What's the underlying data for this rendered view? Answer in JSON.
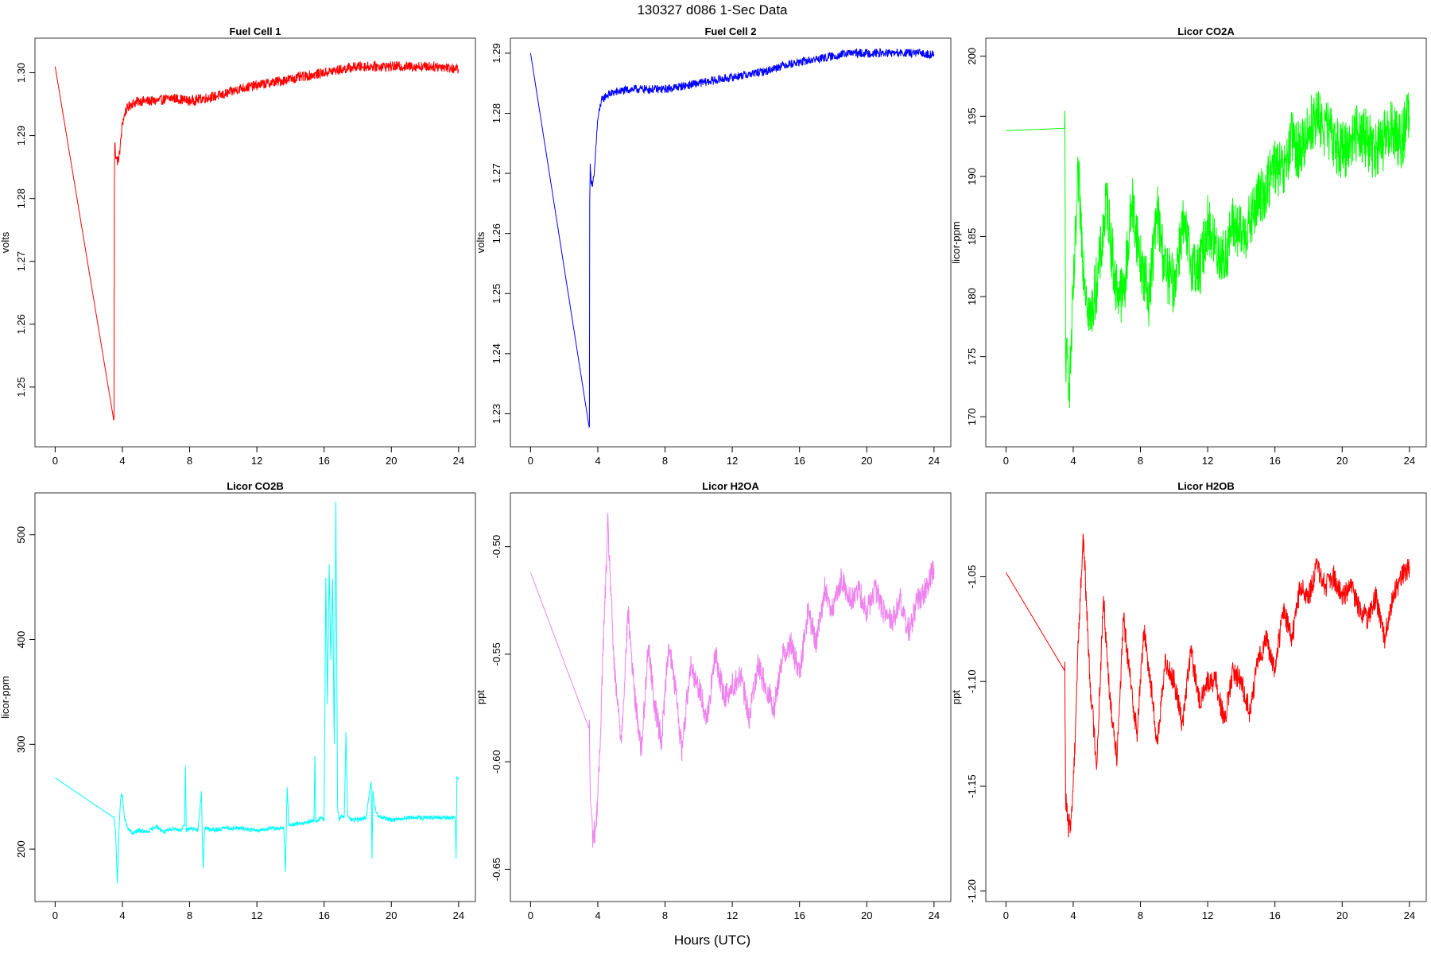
{
  "figure": {
    "title": "130327   d086   1-Sec Data",
    "xlabel": "Hours (UTC)"
  },
  "chart_data": [
    {
      "type": "line",
      "title": "Fuel Cell 1",
      "xlabel": "",
      "ylabel": "volts",
      "color": "#ff0000",
      "xlim": [
        -1.2,
        25
      ],
      "ylim": [
        1.2405,
        1.3055
      ],
      "xticks": [
        0,
        4,
        8,
        12,
        16,
        20,
        24
      ],
      "yticks": [
        1.25,
        1.26,
        1.27,
        1.28,
        1.29,
        1.3
      ],
      "ytick_labels": [
        "1.25",
        "1.26",
        "1.27",
        "1.28",
        "1.29",
        "1.30"
      ],
      "noise": 0.0008,
      "x": [
        0.0,
        3.5,
        3.52,
        3.55,
        3.6,
        3.7,
        3.8,
        3.9,
        4.0,
        4.2,
        4.5,
        5,
        6,
        7,
        8,
        9,
        10,
        11,
        12,
        13,
        14,
        15,
        16,
        17,
        18,
        19,
        20,
        21,
        22,
        23,
        24
      ],
      "y": [
        1.301,
        1.2445,
        1.281,
        1.289,
        1.287,
        1.286,
        1.2865,
        1.289,
        1.292,
        1.294,
        1.295,
        1.2955,
        1.2955,
        1.296,
        1.2955,
        1.296,
        1.2965,
        1.2975,
        1.298,
        1.2985,
        1.299,
        1.2995,
        1.3,
        1.3005,
        1.301,
        1.301,
        1.301,
        1.301,
        1.301,
        1.301,
        1.3005
      ]
    },
    {
      "type": "line",
      "title": "Fuel Cell 2",
      "xlabel": "",
      "ylabel": "volts",
      "color": "#0000ff",
      "xlim": [
        -1.2,
        25
      ],
      "ylim": [
        1.2245,
        1.2925
      ],
      "xticks": [
        0,
        4,
        8,
        12,
        16,
        20,
        24
      ],
      "yticks": [
        1.23,
        1.24,
        1.25,
        1.26,
        1.27,
        1.28,
        1.29
      ],
      "ytick_labels": [
        "1.23",
        "1.24",
        "1.25",
        "1.26",
        "1.27",
        "1.28",
        "1.29"
      ],
      "noise": 0.0007,
      "x": [
        0.0,
        3.5,
        3.52,
        3.55,
        3.6,
        3.7,
        3.8,
        3.9,
        4.0,
        4.2,
        4.5,
        5,
        6,
        7,
        8,
        9,
        10,
        11,
        12,
        13,
        14,
        15,
        16,
        17,
        18,
        19,
        20,
        21,
        22,
        23,
        24
      ],
      "y": [
        1.29,
        1.2275,
        1.266,
        1.271,
        1.269,
        1.268,
        1.27,
        1.275,
        1.279,
        1.282,
        1.283,
        1.2835,
        1.284,
        1.284,
        1.284,
        1.2845,
        1.285,
        1.2855,
        1.286,
        1.2865,
        1.287,
        1.288,
        1.2885,
        1.289,
        1.2895,
        1.29,
        1.29,
        1.29,
        1.29,
        1.29,
        1.2898
      ]
    },
    {
      "type": "line",
      "title": "Licor CO2A",
      "xlabel": "",
      "ylabel": "licor-ppm",
      "color": "#00ff00",
      "xlim": [
        -1.2,
        25
      ],
      "ylim": [
        167.5,
        201.5
      ],
      "xticks": [
        0,
        4,
        8,
        12,
        16,
        20,
        24
      ],
      "yticks": [
        170,
        175,
        180,
        185,
        190,
        195,
        200
      ],
      "ytick_labels": [
        "170",
        "175",
        "180",
        "185",
        "190",
        "195",
        "200"
      ],
      "noise": 2.5,
      "x": [
        0.0,
        3.5,
        3.55,
        3.8,
        4.0,
        4.3,
        4.6,
        5.0,
        5.5,
        6.0,
        6.5,
        7.0,
        7.5,
        8.0,
        8.5,
        9.0,
        9.5,
        10.0,
        10.5,
        11.0,
        11.5,
        12.0,
        12.5,
        13.0,
        13.5,
        14.0,
        14.5,
        15.0,
        15.5,
        16.0,
        16.5,
        17.0,
        17.5,
        18.0,
        18.5,
        19.0,
        19.5,
        20.0,
        20.5,
        21.0,
        21.5,
        22.0,
        22.5,
        23.0,
        23.5,
        24.0
      ],
      "y": [
        193.8,
        194.0,
        175.0,
        173.0,
        180.0,
        190.0,
        183.0,
        178.0,
        182.0,
        188.0,
        181.0,
        180.0,
        188.0,
        183.0,
        180.0,
        187.0,
        182.0,
        181.0,
        186.0,
        183.0,
        182.0,
        186.0,
        184.0,
        183.0,
        186.0,
        185.0,
        186.0,
        188.0,
        189.0,
        191.0,
        190.0,
        193.0,
        192.0,
        194.0,
        195.0,
        194.0,
        193.0,
        192.0,
        193.0,
        194.0,
        193.0,
        192.0,
        193.0,
        194.0,
        193.0,
        195.0
      ]
    },
    {
      "type": "line",
      "title": "Licor CO2B",
      "xlabel": "",
      "ylabel": "licor-ppm",
      "color": "#00ffff",
      "xlim": [
        -1.2,
        25
      ],
      "ylim": [
        150,
        540
      ],
      "xticks": [
        0,
        4,
        8,
        12,
        16,
        20,
        24
      ],
      "yticks": [
        200,
        300,
        400,
        500
      ],
      "ytick_labels": [
        "200",
        "300",
        "400",
        "500"
      ],
      "noise": 2,
      "x": [
        0.0,
        3.5,
        3.6,
        3.7,
        3.8,
        3.9,
        4.0,
        4.1,
        4.3,
        4.6,
        5.0,
        5.5,
        6.0,
        6.5,
        7.0,
        7.5,
        7.7,
        7.75,
        7.8,
        8.0,
        8.5,
        8.7,
        8.8,
        8.9,
        9.0,
        9.5,
        10,
        11,
        12,
        13,
        13.6,
        13.7,
        13.8,
        13.9,
        14.0,
        14.3,
        15.0,
        15.4,
        15.45,
        15.5,
        15.8,
        16.0,
        16.1,
        16.2,
        16.3,
        16.4,
        16.5,
        16.6,
        16.7,
        16.8,
        16.9,
        17.0,
        17.2,
        17.3,
        17.4,
        17.6,
        18.0,
        18.5,
        18.8,
        18.85,
        18.9,
        19.0,
        19.2,
        19.5,
        20.0,
        21.0,
        22.0,
        23.0,
        23.8,
        23.85,
        23.9,
        24.0
      ],
      "y": [
        268,
        230,
        215,
        168,
        218,
        250,
        252,
        232,
        220,
        215,
        218,
        216,
        222,
        216,
        220,
        218,
        222,
        280,
        218,
        220,
        218,
        255,
        180,
        220,
        220,
        218,
        220,
        220,
        218,
        220,
        220,
        178,
        260,
        225,
        222,
        224,
        225,
        228,
        290,
        226,
        230,
        228,
        460,
        340,
        470,
        380,
        460,
        300,
        530,
        240,
        228,
        232,
        230,
        310,
        232,
        228,
        228,
        230,
        265,
        190,
        255,
        240,
        232,
        230,
        228,
        230,
        230,
        230,
        230,
        190,
        268,
        268
      ]
    },
    {
      "type": "line",
      "title": "Licor H2OA",
      "xlabel": "",
      "ylabel": "ppt",
      "color": "#ee82ee",
      "xlim": [
        -1.2,
        25
      ],
      "ylim": [
        -0.665,
        -0.475
      ],
      "xticks": [
        0,
        4,
        8,
        12,
        16,
        20,
        24
      ],
      "yticks": [
        -0.65,
        -0.6,
        -0.55,
        -0.5
      ],
      "ytick_labels": [
        "-0.65",
        "-0.60",
        "-0.55",
        "-0.50"
      ],
      "noise": 0.006,
      "x": [
        0.0,
        3.5,
        3.55,
        3.7,
        3.9,
        4.1,
        4.3,
        4.6,
        5.0,
        5.4,
        5.8,
        6.2,
        6.6,
        7.0,
        7.4,
        7.8,
        8.2,
        8.6,
        9.0,
        9.5,
        10.0,
        10.5,
        11.0,
        11.5,
        12.0,
        12.5,
        13.0,
        13.5,
        14.0,
        14.5,
        15.0,
        15.5,
        16.0,
        16.5,
        17.0,
        17.5,
        18.0,
        18.5,
        19.0,
        19.5,
        20.0,
        20.5,
        21.0,
        21.5,
        22.0,
        22.5,
        23.0,
        23.5,
        24.0
      ],
      "y": [
        -0.512,
        -0.585,
        -0.615,
        -0.635,
        -0.63,
        -0.6,
        -0.55,
        -0.49,
        -0.56,
        -0.59,
        -0.53,
        -0.57,
        -0.595,
        -0.545,
        -0.575,
        -0.59,
        -0.545,
        -0.565,
        -0.595,
        -0.555,
        -0.565,
        -0.58,
        -0.55,
        -0.57,
        -0.565,
        -0.56,
        -0.58,
        -0.555,
        -0.565,
        -0.575,
        -0.55,
        -0.545,
        -0.56,
        -0.53,
        -0.545,
        -0.52,
        -0.53,
        -0.515,
        -0.525,
        -0.52,
        -0.53,
        -0.52,
        -0.53,
        -0.535,
        -0.525,
        -0.54,
        -0.525,
        -0.52,
        -0.51
      ]
    },
    {
      "type": "line",
      "title": "Licor H2OB",
      "xlabel": "",
      "ylabel": "ppt",
      "color": "#ff0000",
      "xlim": [
        -1.2,
        25
      ],
      "ylim": [
        -1.205,
        -1.01
      ],
      "xticks": [
        0,
        4,
        8,
        12,
        16,
        20,
        24
      ],
      "yticks": [
        -1.2,
        -1.15,
        -1.1,
        -1.05
      ],
      "ytick_labels": [
        "-1.20",
        "-1.15",
        "-1.10",
        "-1.05"
      ],
      "noise": 0.0055,
      "x": [
        0.0,
        3.5,
        3.55,
        3.7,
        3.9,
        4.1,
        4.3,
        4.6,
        5.0,
        5.4,
        5.8,
        6.2,
        6.6,
        7.0,
        7.4,
        7.8,
        8.2,
        8.6,
        9.0,
        9.5,
        10.0,
        10.5,
        11.0,
        11.5,
        12.0,
        12.5,
        13.0,
        13.5,
        14.0,
        14.5,
        15.0,
        15.5,
        16.0,
        16.5,
        17.0,
        17.5,
        18.0,
        18.5,
        19.0,
        19.5,
        20.0,
        20.5,
        21.0,
        21.5,
        22.0,
        22.5,
        23.0,
        23.5,
        24.0
      ],
      "y": [
        -1.048,
        -1.095,
        -1.155,
        -1.17,
        -1.165,
        -1.13,
        -1.08,
        -1.03,
        -1.1,
        -1.14,
        -1.06,
        -1.11,
        -1.135,
        -1.07,
        -1.1,
        -1.125,
        -1.075,
        -1.1,
        -1.13,
        -1.09,
        -1.1,
        -1.12,
        -1.085,
        -1.11,
        -1.1,
        -1.1,
        -1.12,
        -1.095,
        -1.1,
        -1.115,
        -1.09,
        -1.08,
        -1.095,
        -1.065,
        -1.08,
        -1.055,
        -1.06,
        -1.045,
        -1.055,
        -1.05,
        -1.06,
        -1.055,
        -1.065,
        -1.07,
        -1.06,
        -1.08,
        -1.06,
        -1.05,
        -1.045
      ]
    }
  ]
}
